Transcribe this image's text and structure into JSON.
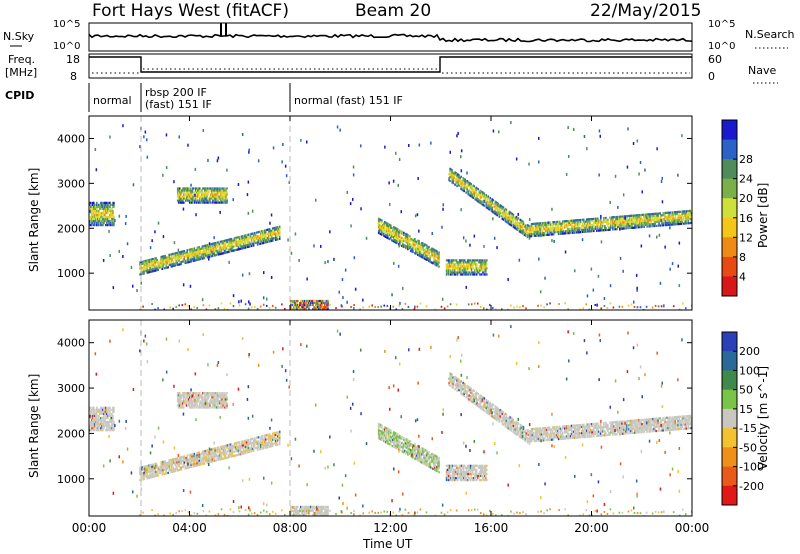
{
  "header": {
    "title": "Fort Hays West (fitACF)",
    "beam": "Beam 20",
    "date": "22/May/2015"
  },
  "status_panels": {
    "nsky_label": "N.Sky",
    "nsky_ticks": [
      "10^5",
      "10^0"
    ],
    "nsearch_label": "N.Search",
    "freq_label": "Freq.",
    "freq_unit": "[MHz]",
    "freq_ticks": [
      "18",
      "8"
    ],
    "nave_label": "Nave",
    "nave_ticks": [
      "60",
      "0"
    ],
    "cpid_label": "CPID",
    "cpid_segments": [
      "normal",
      "rbsp 200 IF",
      "(fast) 151 IF",
      "normal (fast) 151 IF"
    ]
  },
  "chart_data": [
    {
      "type": "heatmap",
      "name": "power",
      "xlabel": "",
      "ylabel": "Slant Range [km]",
      "x_ticks": [
        "00:00",
        "04:00",
        "08:00",
        "12:00",
        "16:00",
        "20:00",
        "00:00"
      ],
      "x_range_hours": [
        0,
        24
      ],
      "y_ticks": [
        1000,
        2000,
        3000,
        4000
      ],
      "y_range_km": [
        180,
        4500
      ],
      "colorbar_label": "Power [dB]",
      "colorbar_ticks": [
        4,
        8,
        12,
        16,
        20,
        24,
        28
      ],
      "colorbar_colors": [
        "#1a1acc",
        "#2a62c8",
        "#4f8c5a",
        "#7ab04a",
        "#cfe03a",
        "#f5c518",
        "#f08a16",
        "#e84a14",
        "#d81818"
      ],
      "echo_regions": [
        {
          "t0": 0.0,
          "t1": 1.0,
          "r0": 2050,
          "r1": 2550
        },
        {
          "t0": 2.0,
          "t1": 7.6,
          "r_start": 1100,
          "r_end": 1900,
          "width": 300
        },
        {
          "t0": 3.5,
          "t1": 5.5,
          "r0": 2550,
          "r1": 2900
        },
        {
          "t0": 8.0,
          "t1": 9.5,
          "r0": 180,
          "r1": 380
        },
        {
          "t0": 11.5,
          "t1": 13.9,
          "r_start": 2050,
          "r_end": 1300,
          "width": 350
        },
        {
          "t0": 14.2,
          "t1": 15.8,
          "r0": 950,
          "r1": 1300
        },
        {
          "t0": 14.3,
          "t1": 17.5,
          "r_start": 3200,
          "r_end": 1900,
          "width": 300
        },
        {
          "t0": 17.5,
          "t1": 24.0,
          "r_start": 1950,
          "r_end": 2250,
          "width": 300
        }
      ]
    },
    {
      "type": "heatmap",
      "name": "velocity",
      "xlabel": "Time UT",
      "ylabel": "Slant Range [km]",
      "x_ticks": [
        "00:00",
        "04:00",
        "08:00",
        "12:00",
        "16:00",
        "20:00",
        "00:00"
      ],
      "x_range_hours": [
        0,
        24
      ],
      "y_ticks": [
        1000,
        2000,
        3000,
        4000
      ],
      "y_range_km": [
        180,
        4500
      ],
      "colorbar_label": "Velocity [m s^-1]",
      "colorbar_ticks": [
        200,
        100,
        50,
        15,
        -15,
        -50,
        -100,
        -200
      ],
      "colorbar_colors": [
        "#2a3fb8",
        "#2a6a9a",
        "#3f8a4a",
        "#7bc44a",
        "#c8c8c0",
        "#f2c230",
        "#f0901a",
        "#ea5a18",
        "#e01818"
      ]
    }
  ]
}
